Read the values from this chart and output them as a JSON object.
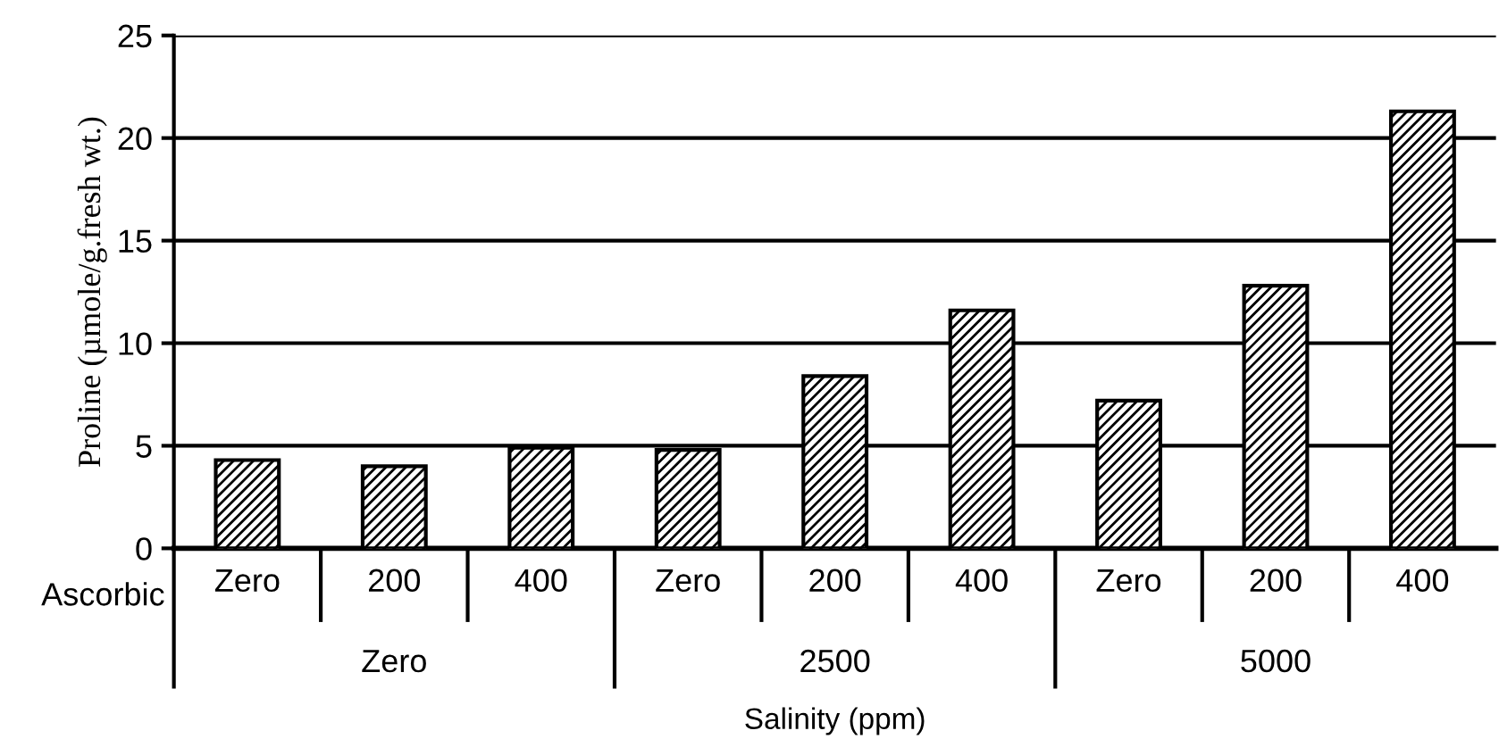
{
  "chart_data": {
    "type": "bar",
    "categories": [
      "Zero",
      "200",
      "400",
      "Zero",
      "200",
      "400",
      "Zero",
      "200",
      "400"
    ],
    "values": [
      4.3,
      4.0,
      4.9,
      4.8,
      8.4,
      11.6,
      7.2,
      12.8,
      21.3
    ],
    "color": "#000000",
    "ylabel": "Proline (µmole/g.fresh wt.)",
    "xlabel": "Salinity (ppm)",
    "ylim": [
      0,
      25
    ],
    "yticks": [
      0,
      5,
      10,
      15,
      20,
      25
    ],
    "grid": "y",
    "annotations": [
      "Ascorbic",
      "Zero",
      "2500",
      "5000"
    ]
  }
}
